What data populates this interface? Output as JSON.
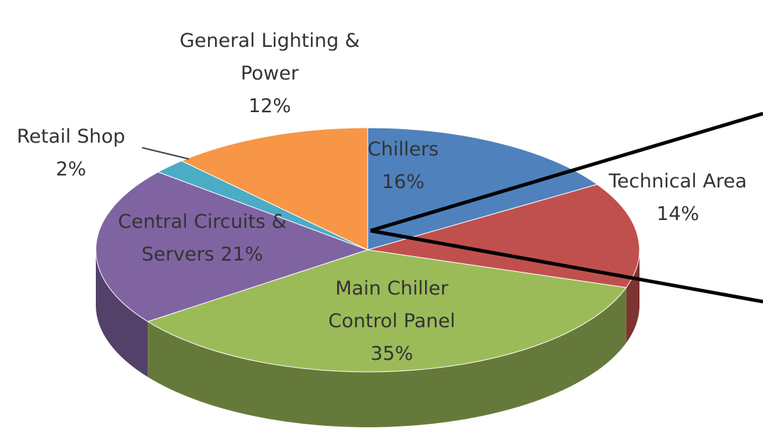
{
  "chart_data": {
    "type": "pie",
    "categories": [
      "Chillers",
      "Technical Area",
      "Main Chiller Control Panel",
      "Central Circuits & Servers",
      "Retail Shop",
      "General Lighting & Power"
    ],
    "values": [
      16,
      14,
      35,
      21,
      2,
      12
    ],
    "value_labels": [
      "16%",
      "14%",
      "35%",
      "21%",
      "2%",
      "12%"
    ],
    "colors": [
      "#4f81bd",
      "#c0504d",
      "#9bbb59",
      "#8064a2",
      "#4bacc6",
      "#f79646"
    ]
  }
}
